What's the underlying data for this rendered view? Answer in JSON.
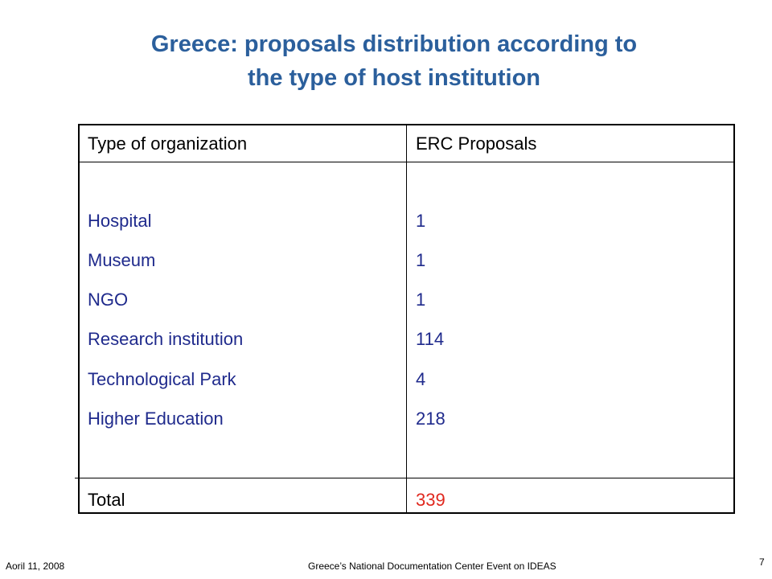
{
  "slide": {
    "title_line1": "Greece: proposals distribution according to",
    "title_line2": "the type of host institution"
  },
  "table": {
    "headers": [
      "Type of organization",
      "ERC Proposals"
    ],
    "rows": [
      {
        "type": "Hospital",
        "proposals": "1"
      },
      {
        "type": "Museum",
        "proposals": "1"
      },
      {
        "type": "NGO",
        "proposals": "1"
      },
      {
        "type": "Research institution",
        "proposals": "114"
      },
      {
        "type": "Technological Park",
        "proposals": "4"
      },
      {
        "type": "Higher Education",
        "proposals": "218"
      }
    ],
    "total_label": "Total",
    "total_value": "339"
  },
  "footer": {
    "date": "Aoril 11, 2008",
    "event": "Greece’s National Documentation Center Event on IDEAS",
    "page_number": "7"
  },
  "colors": {
    "title": "#2b5f9c",
    "row_text": "#1f2a8c",
    "total_value": "#e0281e"
  }
}
